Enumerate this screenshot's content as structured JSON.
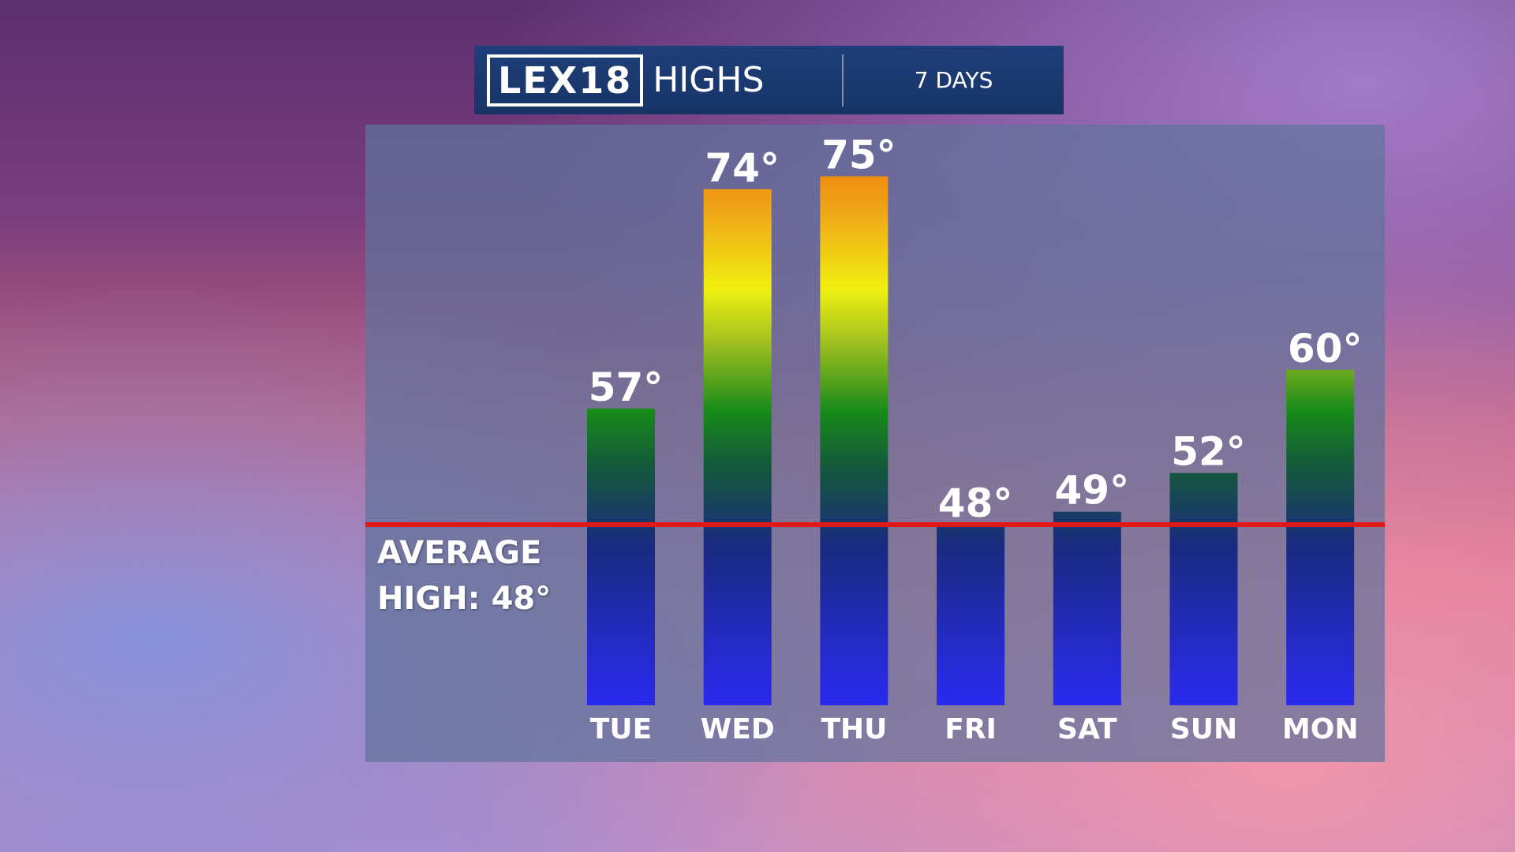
{
  "chart_data": {
    "type": "bar",
    "brand": "LEX18",
    "title": "HIGHS",
    "subtitle": "7 DAYS",
    "categories": [
      "TUE",
      "WED",
      "THU",
      "FRI",
      "SAT",
      "SUN",
      "MON"
    ],
    "values": [
      57,
      74,
      75,
      48,
      49,
      52,
      60
    ],
    "value_labels": [
      "57°",
      "74°",
      "75°",
      "48°",
      "49°",
      "52°",
      "60°"
    ],
    "average": {
      "value": 48,
      "label": "AVERAGE HIGH: 48°",
      "color": "#e01818"
    },
    "ylim": [
      34,
      79
    ],
    "grid": false
  }
}
